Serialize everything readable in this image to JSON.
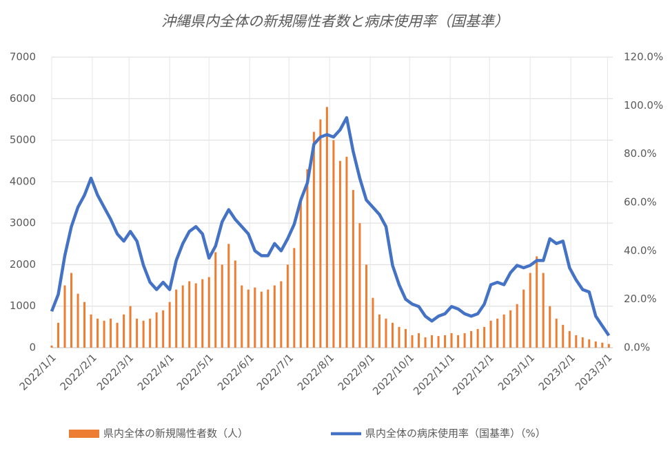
{
  "chart_data": {
    "type": "combo",
    "title": "沖縄県内全体の新規陽性者数と病床使用率（国基準）",
    "x": [
      0,
      5,
      10,
      15,
      20,
      25,
      30,
      35,
      40,
      45,
      50,
      55,
      60,
      65,
      70,
      75,
      80,
      85,
      90,
      95,
      100,
      105,
      110,
      115,
      120,
      125,
      130,
      135,
      140,
      145,
      150,
      155,
      160,
      165,
      170,
      175,
      180,
      185,
      190,
      195,
      200,
      205,
      210,
      215,
      220,
      225,
      230,
      235,
      240,
      245,
      250,
      255,
      260,
      265,
      270,
      275,
      280,
      285,
      290,
      295,
      300,
      305,
      310,
      315,
      320,
      325,
      330,
      335,
      340,
      345,
      350,
      355,
      360,
      365,
      370,
      375,
      380,
      385,
      390,
      395,
      400,
      405,
      410,
      415,
      420,
      425
    ],
    "series": [
      {
        "name": "県内全体の新規陽性者数（人）",
        "type": "bar",
        "color": "#ed7d31",
        "values": [
          50,
          600,
          1500,
          1800,
          1300,
          1100,
          800,
          700,
          650,
          700,
          600,
          800,
          1000,
          700,
          650,
          700,
          850,
          900,
          1100,
          1400,
          1500,
          1600,
          1550,
          1650,
          1700,
          2300,
          2000,
          2500,
          2100,
          1500,
          1400,
          1450,
          1350,
          1400,
          1500,
          1600,
          2000,
          2400,
          3500,
          4300,
          5200,
          5500,
          5800,
          5000,
          4500,
          4600,
          3800,
          3000,
          2000,
          1200,
          800,
          700,
          600,
          500,
          450,
          300,
          350,
          250,
          300,
          280,
          300,
          350,
          300,
          350,
          400,
          450,
          500,
          650,
          700,
          800,
          900,
          1050,
          1400,
          1800,
          2200,
          1800,
          1000,
          700,
          550,
          400,
          300,
          250,
          200,
          150,
          120,
          90
        ]
      },
      {
        "name": "県内全体の病床使用率（国基準）（%）",
        "type": "line",
        "axis": "y2",
        "color": "#4472c4",
        "values": [
          15,
          22,
          38,
          50,
          58,
          63,
          70,
          63,
          58,
          53,
          47,
          44,
          48,
          44,
          34,
          27,
          24,
          27,
          24,
          36,
          43,
          48,
          50,
          47,
          37,
          42,
          52,
          57,
          53,
          50,
          47,
          40,
          38,
          38,
          43,
          40,
          45,
          51,
          61,
          68,
          84,
          87,
          88,
          87,
          90,
          95,
          81,
          70,
          61,
          58,
          55,
          50,
          34,
          26,
          20,
          18,
          17,
          13,
          11,
          13,
          14,
          17,
          16,
          14,
          13,
          14,
          18,
          26,
          27,
          26,
          31,
          34,
          33,
          34,
          36,
          36,
          45,
          43,
          44,
          33,
          28,
          24,
          23,
          13,
          9,
          5
        ]
      }
    ],
    "xlim": [
      0,
      428
    ],
    "xticks": [
      {
        "value": 0,
        "label": "2022/1/1"
      },
      {
        "value": 31,
        "label": "2022/2/1"
      },
      {
        "value": 59,
        "label": "2022/3/1"
      },
      {
        "value": 90,
        "label": "2022/4/1"
      },
      {
        "value": 120,
        "label": "2022/5/1"
      },
      {
        "value": 151,
        "label": "2022/6/1"
      },
      {
        "value": 181,
        "label": "2022/7/1"
      },
      {
        "value": 212,
        "label": "2022/8/1"
      },
      {
        "value": 243,
        "label": "2022/9/1"
      },
      {
        "value": 273,
        "label": "2022/10/1"
      },
      {
        "value": 304,
        "label": "2022/11/1"
      },
      {
        "value": 334,
        "label": "2022/12/1"
      },
      {
        "value": 365,
        "label": "2023/1/1"
      },
      {
        "value": 396,
        "label": "2023/2/1"
      },
      {
        "value": 424,
        "label": "2023/3/1"
      }
    ],
    "ylim": [
      0,
      7000
    ],
    "yticks": [
      0,
      1000,
      2000,
      3000,
      4000,
      5000,
      6000,
      7000
    ],
    "y2lim": [
      0,
      120
    ],
    "y2ticks": [
      {
        "value": 0,
        "label": "0.0%"
      },
      {
        "value": 20,
        "label": "20.0%"
      },
      {
        "value": 40,
        "label": "40.0%"
      },
      {
        "value": 60,
        "label": "60.0%"
      },
      {
        "value": 80,
        "label": "80.0%"
      },
      {
        "value": 100,
        "label": "100.0%"
      },
      {
        "value": 120,
        "label": "120.0%"
      }
    ],
    "grid": true
  }
}
